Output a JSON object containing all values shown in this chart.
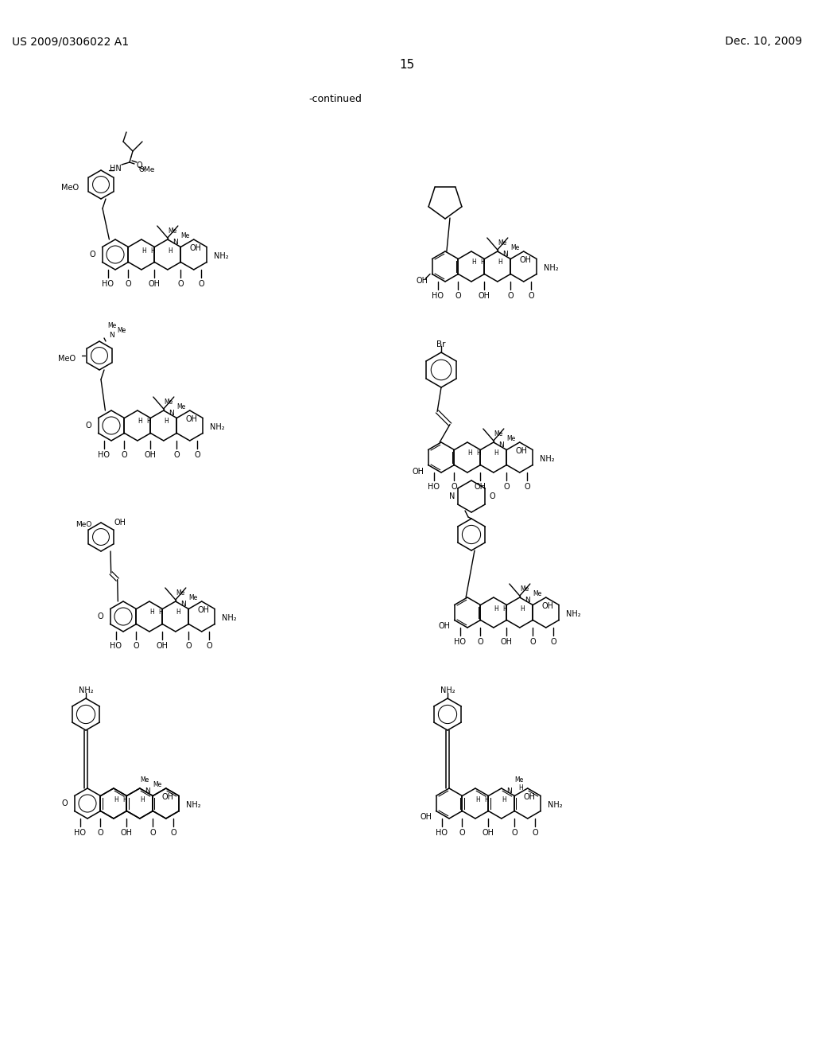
{
  "background_color": "#ffffff",
  "header_left": "US 2009/0306022 A1",
  "header_right": "Dec. 10, 2009",
  "page_number": "15",
  "continued_text": "-continued"
}
